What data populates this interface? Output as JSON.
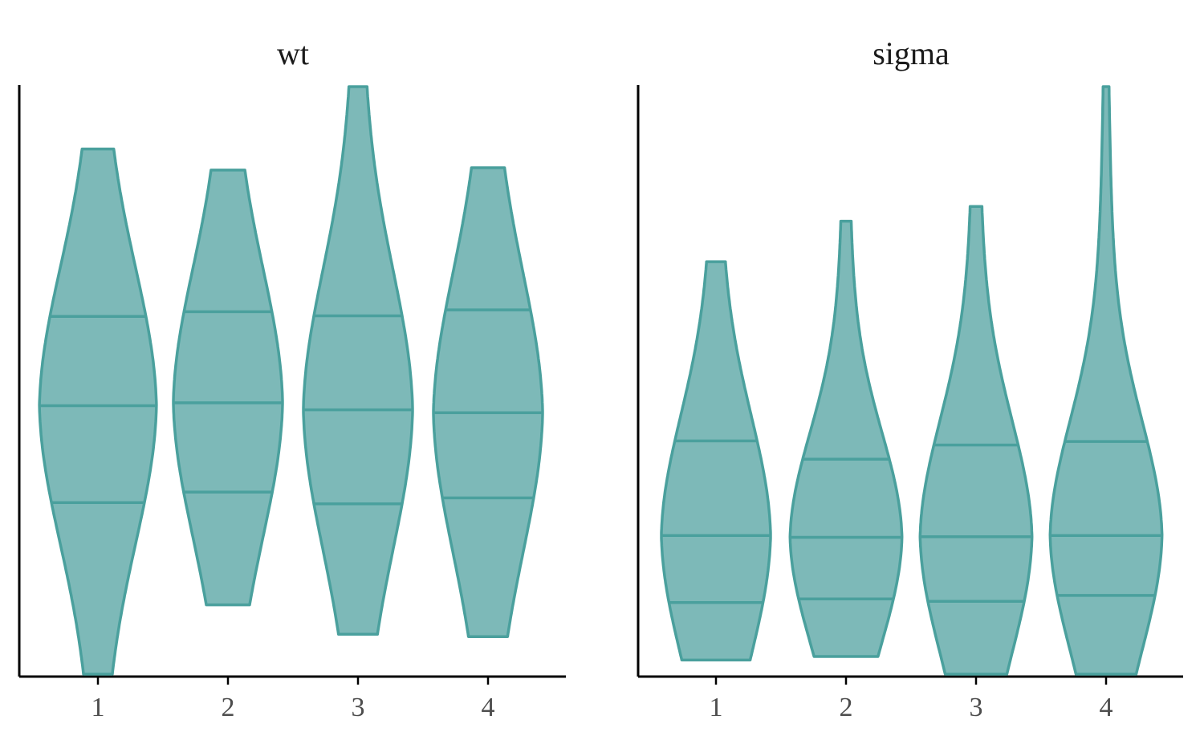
{
  "chart_data": [
    {
      "type": "violin",
      "title": "wt",
      "categories": [
        "1",
        "2",
        "3",
        "4"
      ],
      "y_axis": "no tick labels",
      "draw_quantiles": [
        0.25,
        0.5,
        0.75
      ],
      "fill_color": "#7db9b8",
      "stroke_color": "#4aa09d",
      "violins": [
        {
          "category": "1",
          "min": 0.0,
          "max": 0.894,
          "q25": 0.292,
          "median": 0.457,
          "q75": 0.609,
          "max_half_width": 0.45
        },
        {
          "category": "2",
          "min": 0.118,
          "max": 0.858,
          "q25": 0.31,
          "median": 0.462,
          "q75": 0.617,
          "max_half_width": 0.42
        },
        {
          "category": "3",
          "min": 0.068,
          "max": 1.0,
          "q25": 0.29,
          "median": 0.45,
          "q75": 0.61,
          "max_half_width": 0.42
        },
        {
          "category": "4",
          "min": 0.064,
          "max": 0.862,
          "q25": 0.3,
          "median": 0.445,
          "q75": 0.62,
          "max_half_width": 0.42
        }
      ]
    },
    {
      "type": "violin",
      "title": "sigma",
      "categories": [
        "1",
        "2",
        "3",
        "4"
      ],
      "y_axis": "no tick labels",
      "draw_quantiles": [
        0.25,
        0.5,
        0.75
      ],
      "fill_color": "#7db9b8",
      "stroke_color": "#4aa09d",
      "violins": [
        {
          "category": "1",
          "min": 0.024,
          "max": 0.702,
          "q25": 0.122,
          "median": 0.236,
          "q75": 0.397,
          "max_half_width": 0.42
        },
        {
          "category": "2",
          "min": 0.03,
          "max": 0.771,
          "q25": 0.128,
          "median": 0.233,
          "q75": 0.366,
          "max_half_width": 0.43
        },
        {
          "category": "3",
          "min": 0.0,
          "max": 0.796,
          "q25": 0.124,
          "median": 0.234,
          "q75": 0.39,
          "max_half_width": 0.43
        },
        {
          "category": "4",
          "min": 0.0,
          "max": 1.0,
          "q25": 0.134,
          "median": 0.236,
          "q75": 0.396,
          "max_half_width": 0.43
        }
      ]
    }
  ]
}
